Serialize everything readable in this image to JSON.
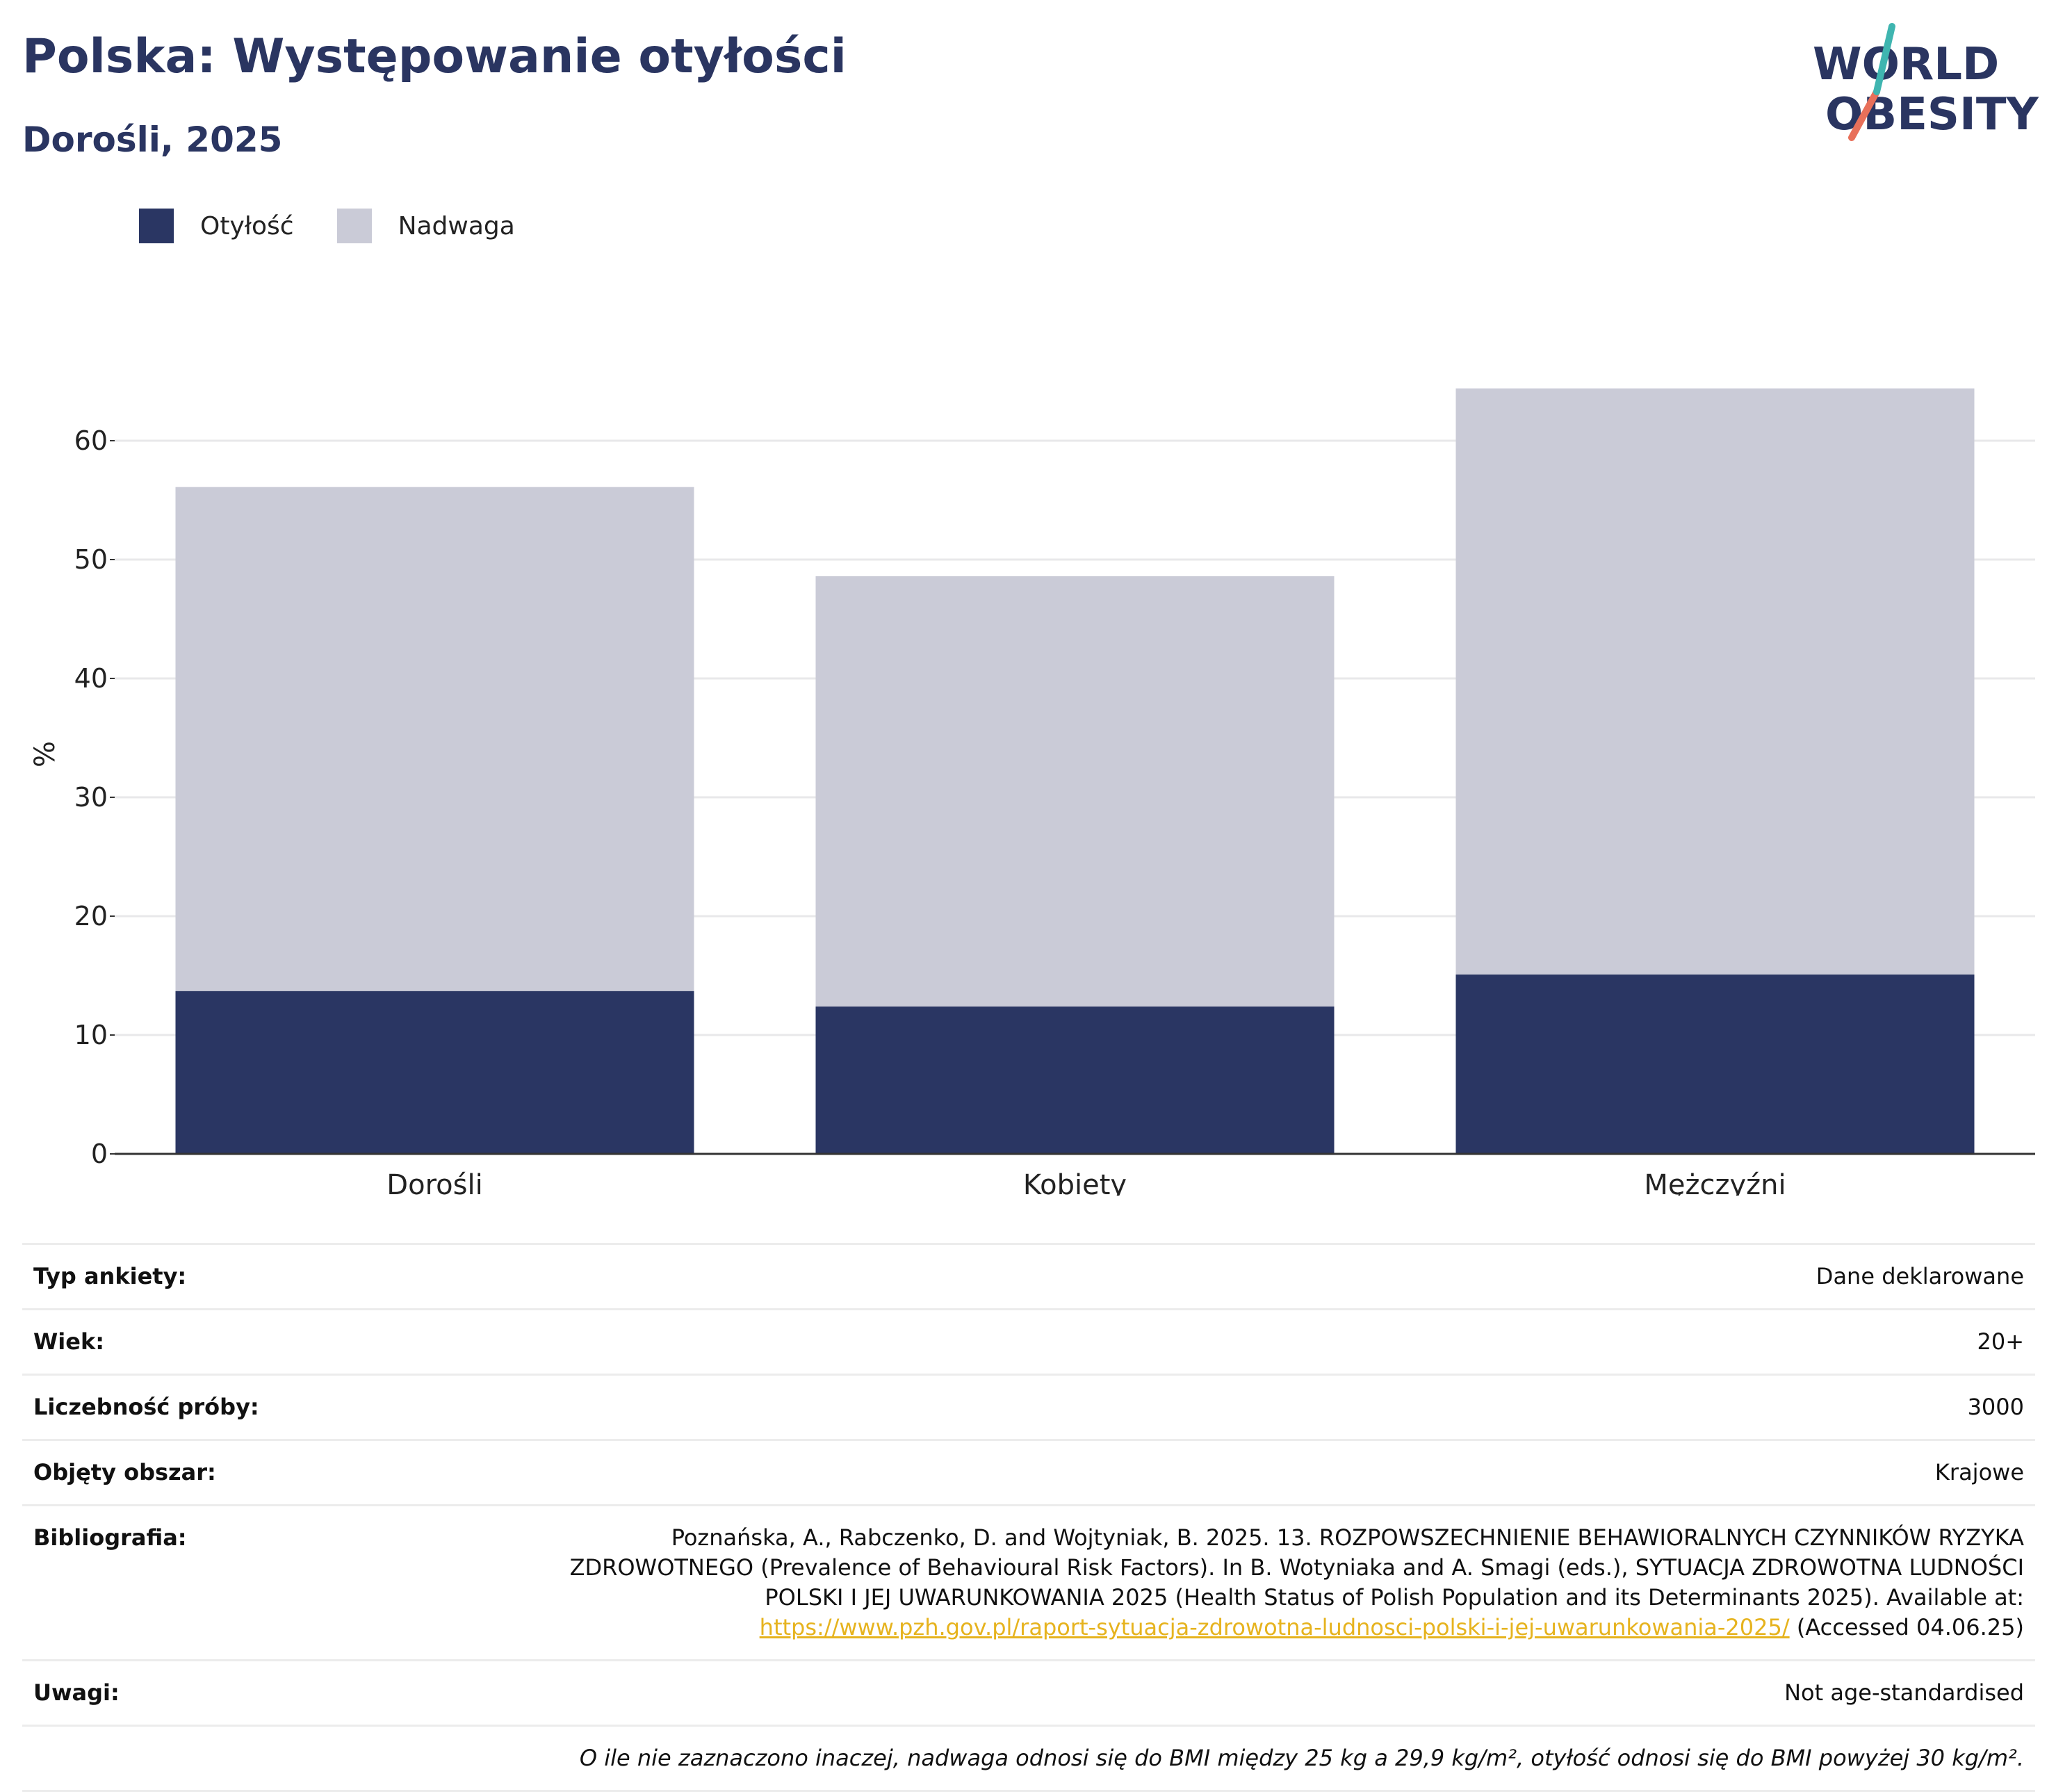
{
  "title": "Polska: Występowanie otyłości",
  "subtitle": "Dorośli, 2025",
  "logo": {
    "line1": "WORLD",
    "line2": "OBESITY",
    "accent_colors": [
      "#3fb5b0",
      "#e8705a"
    ]
  },
  "legend": [
    {
      "label": "Otyłość",
      "color": "#2a3663"
    },
    {
      "label": "Nadwaga",
      "color": "#cacbd7"
    }
  ],
  "chart_data": {
    "type": "bar",
    "stacked": true,
    "categories": [
      "Dorośli",
      "Kobiety",
      "Mężczyźni"
    ],
    "series": [
      {
        "name": "Otyłość",
        "color": "#2a3663",
        "values": [
          13.7,
          12.4,
          15.1
        ]
      },
      {
        "name": "Nadwaga",
        "color": "#cacbd7",
        "values": [
          42.4,
          36.2,
          49.3
        ]
      }
    ],
    "ylabel": "%",
    "xlabel": "",
    "ylim": [
      0,
      70
    ],
    "yticks": [
      0,
      10,
      20,
      30,
      40,
      50,
      60
    ],
    "grid": true,
    "legend_position": "top-left"
  },
  "meta": {
    "survey_type": {
      "key": "Typ ankiety:",
      "value": "Dane deklarowane"
    },
    "age": {
      "key": "Wiek:",
      "value": "20+"
    },
    "sample": {
      "key": "Liczebność próby:",
      "value": "3000"
    },
    "area": {
      "key": "Objęty obszar:",
      "value": "Krajowe"
    },
    "bibliography": {
      "key": "Bibliografia:",
      "text": "Poznańska, A., Rabczenko, D. and Wojtyniak, B. 2025. 13. ROZPOWSZECHNIENIE BEHAWIORALNYCH CZYNNIKÓW RYZYKA ZDROWOTNEGO (Prevalence of Behavioural Risk Factors). In B. Wotyniaka and A. Smagi (eds.), SYTUACJA ZDROWOTNA LUDNOŚCI POLSKI I JEJ UWARUNKOWANIA 2025 (Health Status of Polish Population and its Determinants 2025). Available at:",
      "link": "https://www.pzh.gov.pl/raport-sytuacja-zdrowotna-ludnosci-polski-i-jej-uwarunkowania-2025/",
      "accessed": "(Accessed 04.06.25)"
    },
    "notes": {
      "key": "Uwagi:",
      "value": "Not age-standardised"
    },
    "footnote": "O ile nie zaznaczono inaczej, nadwaga odnosi się do BMI między 25 kg a 29,9 kg/m², otyłość odnosi się do BMI powyżej 30 kg/m²."
  }
}
